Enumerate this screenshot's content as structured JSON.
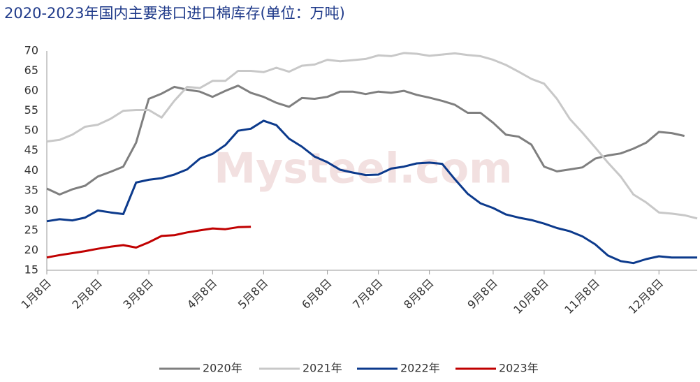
{
  "chart_data": {
    "type": "line",
    "title": "2020-2023年国内主要港口进口棉库存(单位：万吨)",
    "watermark": "Mysteel.com",
    "categories": [
      "1月8日",
      null,
      null,
      null,
      "2月8日",
      null,
      null,
      null,
      "3月8日",
      null,
      null,
      null,
      null,
      "4月8日",
      null,
      null,
      null,
      "5月8日",
      null,
      null,
      null,
      null,
      "6月8日",
      null,
      null,
      null,
      "7月8日",
      null,
      null,
      null,
      "8月8日",
      null,
      null,
      null,
      null,
      "9月8日",
      null,
      null,
      null,
      "10月8日",
      null,
      null,
      null,
      "11月8日",
      null,
      null,
      null,
      null,
      "12月8日",
      null,
      null,
      null
    ],
    "series": [
      {
        "name": "2020年",
        "color": "#7f7f7f",
        "values": [
          35.5,
          34,
          35.3,
          36.2,
          38.5,
          39.7,
          41,
          47,
          58,
          59.3,
          61,
          60.3,
          59.8,
          58.5,
          60,
          61.3,
          59.5,
          58.5,
          57,
          56,
          58.2,
          58,
          58.5,
          59.8,
          59.8,
          59.2,
          59.8,
          59.5,
          60,
          59,
          58.3,
          57.5,
          56.5,
          54.5,
          54.5,
          52,
          49,
          48.5,
          46.5,
          41,
          39.8,
          40.3,
          40.8,
          43,
          43.8,
          44.3,
          45.5,
          47,
          49.7,
          49.4,
          48.7,
          null
        ]
      },
      {
        "name": "2021年",
        "color": "#c8c8c8",
        "values": [
          47.3,
          47.7,
          49,
          51,
          51.5,
          53,
          55,
          55.2,
          55.2,
          53.3,
          57.5,
          61,
          60.7,
          62.5,
          62.5,
          65,
          65,
          64.7,
          65.8,
          64.8,
          66.3,
          66.6,
          67.8,
          67.4,
          67.7,
          68,
          68.9,
          68.7,
          69.5,
          69.3,
          68.8,
          69.1,
          69.4,
          69,
          68.7,
          67.8,
          66.5,
          64.8,
          63,
          61.8,
          58,
          53,
          49.5,
          45.8,
          42,
          38.5,
          34,
          32,
          29.5,
          29.2,
          28.8,
          28
        ]
      },
      {
        "name": "2022年",
        "color": "#0c3a8c",
        "values": [
          27.3,
          27.8,
          27.5,
          28.2,
          30,
          29.5,
          29.1,
          37,
          37.7,
          38.1,
          39,
          40.3,
          43,
          44.2,
          46.4,
          50,
          50.5,
          52.5,
          51.4,
          48,
          46,
          43.5,
          42.1,
          40.2,
          39.5,
          38.9,
          39,
          40.5,
          41,
          41.8,
          42,
          41.7,
          37.8,
          34.2,
          31.8,
          30.6,
          29,
          28.2,
          27.6,
          26.7,
          25.6,
          24.8,
          23.5,
          21.5,
          18.7,
          17.3,
          16.8,
          17.8,
          18.5,
          18.2,
          18.2,
          18.2
        ]
      },
      {
        "name": "2023年",
        "color": "#c00000",
        "values": [
          18.2,
          18.8,
          19.3,
          19.8,
          20.4,
          20.9,
          21.3,
          20.7,
          22,
          23.6,
          23.8,
          24.5,
          25,
          25.5,
          25.3,
          25.8,
          25.9,
          null,
          null,
          null,
          null,
          null,
          null,
          null,
          null,
          null,
          null,
          null,
          null,
          null,
          null,
          null,
          null,
          null,
          null,
          null,
          null,
          null,
          null,
          null,
          null,
          null,
          null,
          null,
          null,
          null,
          null,
          null,
          null,
          null,
          null,
          null
        ]
      }
    ],
    "ylim": [
      15,
      70
    ],
    "yticks": [
      15,
      20,
      25,
      30,
      35,
      40,
      45,
      50,
      55,
      60,
      65,
      70
    ],
    "grid": false,
    "legend": "bottom"
  }
}
